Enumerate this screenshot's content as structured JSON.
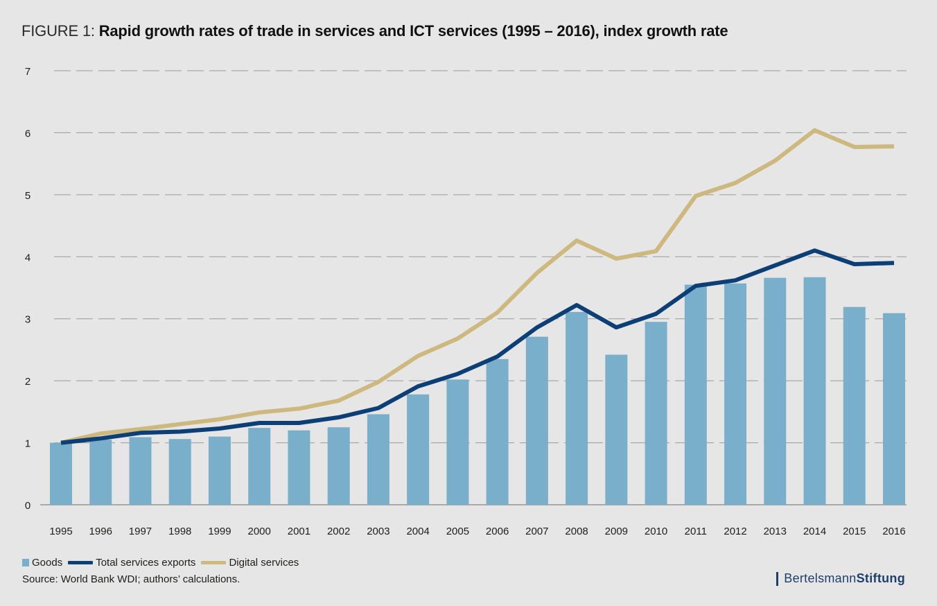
{
  "header": {
    "title_prefix": "FIGURE 1:",
    "title_main": "Rapid growth rates of trade in services and ICT services (1995 – 2016), index growth rate"
  },
  "legend": {
    "goods": "Goods",
    "total_services": "Total services exports",
    "digital_services": "Digital services"
  },
  "footer": {
    "source": "Source:  World Bank WDI; authors’ calculations.",
    "brand_part1": "Bertelsmann",
    "brand_part2": "Stiftung"
  },
  "colors": {
    "goods": "#7aafcb",
    "total_services": "#0d3f77",
    "digital_services": "#cdb87e",
    "grid": "#9a9a9a"
  },
  "chart_data": {
    "type": "bar",
    "title": "Rapid growth rates of trade in services and ICT services (1995 – 2016), index growth rate",
    "categories": [
      "1995",
      "1996",
      "1997",
      "1998",
      "1999",
      "2000",
      "2001",
      "2002",
      "2003",
      "2004",
      "2005",
      "2006",
      "2007",
      "2008",
      "2009",
      "2010",
      "2011",
      "2012",
      "2013",
      "2014",
      "2015",
      "2016"
    ],
    "ylim": [
      0,
      7
    ],
    "yticks": [
      0,
      1,
      2,
      3,
      4,
      5,
      6,
      7
    ],
    "grid": true,
    "legend_position": "bottom-left",
    "series": [
      {
        "name": "Goods",
        "type": "bar",
        "values": [
          1.0,
          1.05,
          1.09,
          1.06,
          1.1,
          1.24,
          1.2,
          1.25,
          1.46,
          1.78,
          2.02,
          2.35,
          2.71,
          3.11,
          2.42,
          2.95,
          3.55,
          3.57,
          3.66,
          3.67,
          3.19,
          3.09
        ]
      },
      {
        "name": "Total services exports",
        "type": "line",
        "values": [
          1.0,
          1.07,
          1.16,
          1.18,
          1.23,
          1.32,
          1.32,
          1.41,
          1.56,
          1.91,
          2.11,
          2.39,
          2.86,
          3.22,
          2.86,
          3.08,
          3.53,
          3.62,
          3.86,
          4.1,
          3.88,
          3.9
        ]
      },
      {
        "name": "Digital services",
        "type": "line",
        "values": [
          1.0,
          1.15,
          1.22,
          1.3,
          1.38,
          1.49,
          1.55,
          1.68,
          1.98,
          2.4,
          2.68,
          3.1,
          3.74,
          4.26,
          3.97,
          4.09,
          4.98,
          5.19,
          5.55,
          6.04,
          5.77,
          5.78
        ]
      }
    ]
  }
}
